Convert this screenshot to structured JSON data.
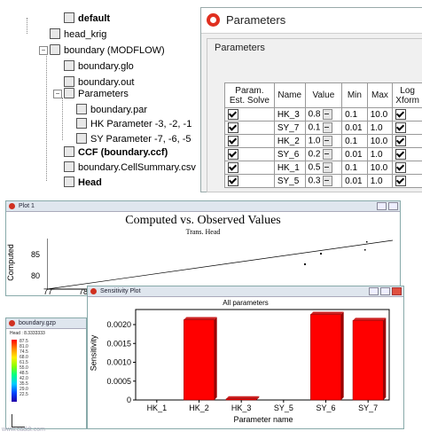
{
  "tree": {
    "items": [
      {
        "label": "default",
        "icon": "grid-icon",
        "bold": true
      },
      {
        "label": "head_krig",
        "icon": "table-icon"
      },
      {
        "label": "boundary (MODFLOW)",
        "icon": "folder-model-icon"
      },
      {
        "label": "boundary.glo",
        "icon": "document-icon"
      },
      {
        "label": "boundary.out",
        "icon": "document-icon"
      },
      {
        "label": "Parameters",
        "icon": "folder-icon"
      },
      {
        "label": "boundary.par",
        "icon": "document-icon"
      },
      {
        "label": "HK Parameter -3, -2, -1",
        "icon": "table-icon"
      },
      {
        "label": "SY Parameter -7, -6, -5",
        "icon": "table-icon"
      },
      {
        "label": "CCF (boundary.ccf)",
        "icon": "blue-doc-icon",
        "bold": true
      },
      {
        "label": "boundary.CellSummary.csv",
        "icon": "document-icon"
      },
      {
        "label": "Head",
        "icon": "table-icon",
        "bold": true
      }
    ]
  },
  "params_window": {
    "title": "Parameters",
    "group_label": "Parameters",
    "columns": [
      "Param. Est. Solve",
      "Name",
      "Value",
      "Min",
      "Max",
      "Log Xform"
    ],
    "rows": [
      {
        "solve": true,
        "name": "HK_3",
        "value": "0.8",
        "min": "0.1",
        "max": "10.0",
        "log": true
      },
      {
        "solve": true,
        "name": "SY_7",
        "value": "0.1",
        "min": "0.01",
        "max": "1.0",
        "log": true
      },
      {
        "solve": true,
        "name": "HK_2",
        "value": "1.0",
        "min": "0.1",
        "max": "10.0",
        "log": true
      },
      {
        "solve": true,
        "name": "SY_6",
        "value": "0.2",
        "min": "0.01",
        "max": "1.0",
        "log": true
      },
      {
        "solve": true,
        "name": "HK_1",
        "value": "0.5",
        "min": "0.1",
        "max": "10.0",
        "log": true
      },
      {
        "solve": true,
        "name": "SY_5",
        "value": "0.3",
        "min": "0.01",
        "max": "1.0",
        "log": true
      }
    ]
  },
  "plot_window": {
    "title": "Plot 1",
    "chart_title": "Computed vs. Observed Values",
    "subtitle": "Trans. Head",
    "ylabel": "Computed",
    "yticks": [
      "85",
      "80"
    ],
    "xticks": [
      "77",
      "78"
    ]
  },
  "gzp_window": {
    "title": "boundary.gzp",
    "legend_title": "Head : 8.3333333",
    "legend_values": [
      "87.5",
      "81.0",
      "74.5",
      "68.0",
      "61.5",
      "55.0",
      "48.5",
      "42.0",
      "35.5",
      "29.0",
      "22.5"
    ]
  },
  "sens_window": {
    "title": "Sensitivity Plot"
  },
  "chart_data": {
    "type": "bar",
    "title": "All parameters",
    "xlabel": "Parameter name",
    "ylabel": "Sensitivity",
    "categories": [
      "HK_1",
      "HK_2",
      "HK_3",
      "SY_5",
      "SY_6",
      "SY_7"
    ],
    "values": [
      0,
      0.00213,
      3e-05,
      0,
      0.00227,
      0.00211
    ],
    "yticks": [
      "0",
      "0.0005",
      "0.0010",
      "0.0015",
      "0.0020"
    ],
    "ylim": [
      0,
      0.0024
    ],
    "bar_color": "#ff0000"
  },
  "watermark": "www.caddt.com"
}
